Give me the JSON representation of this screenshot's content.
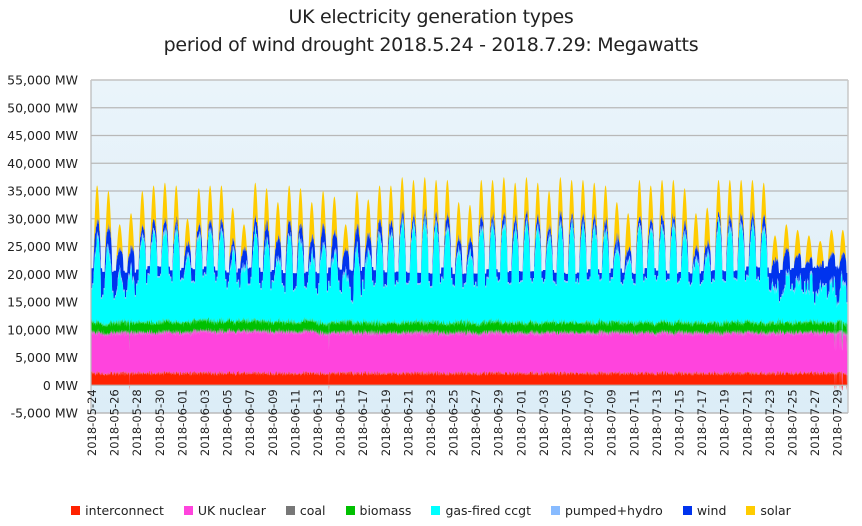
{
  "chart_data": {
    "type": "area",
    "stacked": true,
    "title": "UK electricity generation types",
    "subtitle": "period of wind drought 2018.5.24 - 2018.7.29: Megawatts",
    "xlabel": "",
    "ylabel": "",
    "ylim": [
      -5000,
      55000
    ],
    "yticks": [
      -5000,
      0,
      5000,
      10000,
      15000,
      20000,
      25000,
      30000,
      35000,
      40000,
      45000,
      50000,
      55000
    ],
    "ytick_labels": [
      "-5,000 MW",
      "0 MW",
      "5,000 MW",
      "10,000 MW",
      "15,000 MW",
      "20,000 MW",
      "25,000 MW",
      "30,000 MW",
      "35,000 MW",
      "40,000 MW",
      "45,000 MW",
      "50,000 MW",
      "55,000 MW"
    ],
    "x_range": [
      "2018-05-24",
      "2018-07-30"
    ],
    "xtick_labels": [
      "2018-05-24",
      "2018-05-26",
      "2018-05-28",
      "2018-05-30",
      "2018-06-01",
      "2018-06-03",
      "2018-06-05",
      "2018-06-07",
      "2018-06-09",
      "2018-06-11",
      "2018-06-13",
      "2018-06-15",
      "2018-06-17",
      "2018-06-19",
      "2018-06-21",
      "2018-06-23",
      "2018-06-25",
      "2018-06-27",
      "2018-06-29",
      "2018-07-01",
      "2018-07-03",
      "2018-07-05",
      "2018-07-07",
      "2018-07-09",
      "2018-07-11",
      "2018-07-13",
      "2018-07-15",
      "2018-07-17",
      "2018-07-19",
      "2018-07-21",
      "2018-07-23",
      "2018-07-25",
      "2018-07-27",
      "2018-07-29"
    ],
    "grid": true,
    "legend_position": "bottom",
    "series": [
      {
        "name": "interconnect",
        "color": "#ff2200",
        "typical_mw": 2300,
        "range_mw": [
          -1000,
          3200
        ]
      },
      {
        "name": "UK nuclear",
        "color": "#ff44dd",
        "typical_mw": 7300,
        "range_mw": [
          6500,
          8200
        ]
      },
      {
        "name": "coal",
        "color": "#777777",
        "typical_mw": 150,
        "range_mw": [
          0,
          600
        ]
      },
      {
        "name": "biomass",
        "color": "#00c000",
        "typical_mw": 1600,
        "range_mw": [
          800,
          2400
        ]
      },
      {
        "name": "gas-fired ccgt",
        "color": "#00ffff",
        "typical_mw": 13000,
        "range_mw": [
          6000,
          20000
        ]
      },
      {
        "name": "pumped+hydro",
        "color": "#88bbff",
        "typical_mw": 400,
        "range_mw": [
          0,
          1500
        ]
      },
      {
        "name": "wind",
        "color": "#0033ee",
        "typical_mw": 1500,
        "range_mw": [
          300,
          8000
        ]
      },
      {
        "name": "solar",
        "color": "#ffcc00",
        "typical_mw": 3000,
        "range_mw": [
          0,
          7000
        ]
      }
    ],
    "daily_total_peak_mw": [
      36000,
      35000,
      29000,
      31000,
      35000,
      36000,
      36500,
      36000,
      30000,
      35500,
      36000,
      36000,
      32000,
      29000,
      36500,
      35500,
      33000,
      36000,
      35500,
      33000,
      35000,
      34000,
      29000,
      35000,
      33500,
      36000,
      36000,
      37500,
      37000,
      37500,
      37000,
      37000,
      33000,
      32500,
      37000,
      37000,
      37500,
      36500,
      37500,
      36500,
      35000,
      37500,
      37000,
      37000,
      36500,
      36000,
      33000,
      31000,
      37000,
      36000,
      37000,
      37000,
      35500,
      31000,
      32000,
      37000,
      37000,
      37000,
      37000,
      36500,
      27000,
      29000,
      28000,
      27000,
      26000,
      28000,
      28000
    ],
    "daily_wind_peak_mw": [
      6000,
      5500,
      6500,
      7000,
      3000,
      3000,
      2500,
      2500,
      3000,
      2500,
      2000,
      2500,
      3000,
      4000,
      3500,
      3500,
      4500,
      4000,
      3500,
      4000,
      4500,
      5000,
      6000,
      6500,
      4500,
      3500,
      3000,
      2500,
      2000,
      2000,
      2500,
      3000,
      3500,
      3000,
      2500,
      2000,
      2000,
      2500,
      2000,
      2000,
      2500,
      2500,
      2000,
      2000,
      2000,
      2000,
      3000,
      2500,
      2000,
      2000,
      2000,
      2000,
      2000,
      2500,
      3000,
      2000,
      2000,
      2000,
      2500,
      2500,
      6000,
      7000,
      6500,
      6000,
      7500,
      8000,
      7500
    ]
  },
  "legend": [
    {
      "label": "interconnect",
      "color": "#ff2200"
    },
    {
      "label": "UK nuclear",
      "color": "#ff44dd"
    },
    {
      "label": "coal",
      "color": "#777777"
    },
    {
      "label": "biomass",
      "color": "#00c000"
    },
    {
      "label": "gas-fired ccgt",
      "color": "#00ffff"
    },
    {
      "label": "pumped+hydro",
      "color": "#88bbff"
    },
    {
      "label": "wind",
      "color": "#0033ee"
    },
    {
      "label": "solar",
      "color": "#ffcc00"
    }
  ],
  "colors": {
    "plot_background": "#e3f0f8",
    "gridline": "#b8b8b8"
  }
}
